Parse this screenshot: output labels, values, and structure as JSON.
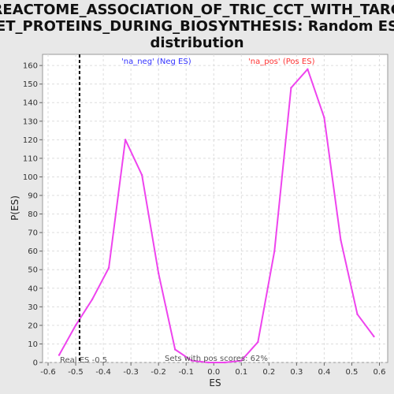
{
  "chart_data": {
    "type": "line",
    "title_lines": [
      "REACTOME_ASSOCIATION_OF_TRIC_CCT_WITH_TARG",
      "ET_PROTEINS_DURING_BIOSYNTHESIS: Random ES",
      "distribution"
    ],
    "xlabel": "ES",
    "ylabel": "P(ES)",
    "xlim": [
      -0.62,
      0.63
    ],
    "ylim": [
      0,
      166
    ],
    "xticks": [
      "-0.6",
      "-0.5",
      "-0.4",
      "-0.3",
      "-0.2",
      "-0.1",
      "0.0",
      "0.1",
      "0.2",
      "0.3",
      "0.4",
      "0.5",
      "0.6"
    ],
    "xtick_values": [
      -0.6,
      -0.5,
      -0.4,
      -0.3,
      -0.2,
      -0.1,
      0.0,
      0.1,
      0.2,
      0.3,
      0.4,
      0.5,
      0.6
    ],
    "yticks": [
      "0",
      "10",
      "20",
      "30",
      "40",
      "50",
      "60",
      "70",
      "80",
      "90",
      "100",
      "110",
      "120",
      "130",
      "140",
      "150",
      "160"
    ],
    "ytick_values": [
      0,
      10,
      20,
      30,
      40,
      50,
      60,
      70,
      80,
      90,
      100,
      110,
      120,
      130,
      140,
      150,
      160
    ],
    "grid": true,
    "series": [
      {
        "color": "#ee44ee",
        "x": [
          -0.56,
          -0.5,
          -0.44,
          -0.38,
          -0.32,
          -0.26,
          -0.2,
          -0.14,
          -0.08,
          -0.02,
          0.04,
          0.1,
          0.16,
          0.22,
          0.28,
          0.34,
          0.4,
          0.46,
          0.52,
          0.58
        ],
        "y": [
          4,
          20,
          34,
          51,
          120,
          101,
          48,
          7,
          1,
          0,
          0,
          1,
          11,
          60,
          148,
          158,
          132,
          66,
          26,
          14
        ]
      }
    ],
    "real_es_line": {
      "x": -0.486,
      "style": "dashed",
      "color": "#000000"
    },
    "annotations": {
      "neg_label": "'na_neg' (Neg ES)",
      "neg_color": "#3333ff",
      "pos_label": "'na_pos' (Pos ES)",
      "pos_color": "#ff3333",
      "real_es_text": "Real ES -0.5",
      "sets_text": "Sets with pos scores: 62%"
    }
  }
}
